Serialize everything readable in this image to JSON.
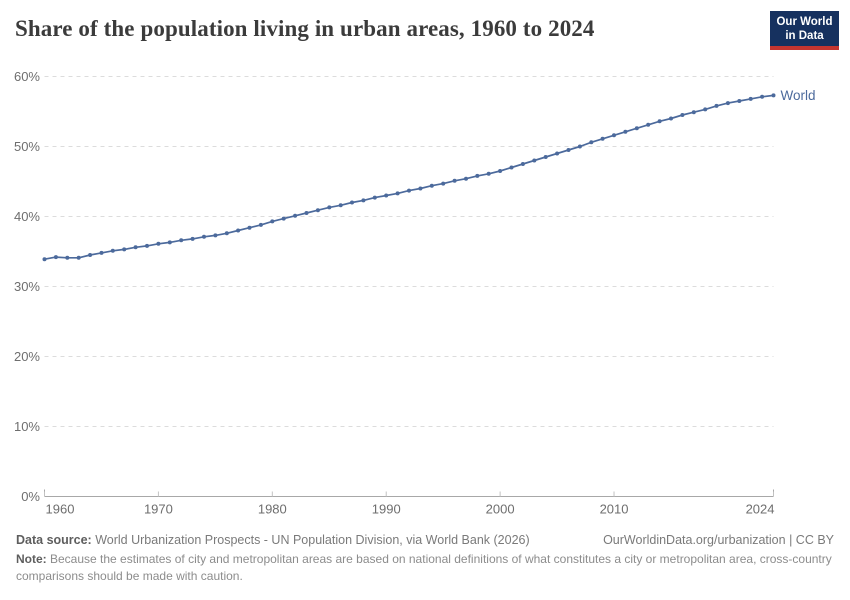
{
  "header": {
    "logo": {
      "line1": "Our World",
      "line2": "in Data"
    }
  },
  "chart_data": {
    "type": "line",
    "title": "Share of the population living in urban areas, 1960 to 2024",
    "xlabel": "",
    "ylabel": "",
    "unit": "%",
    "xlim": [
      1960,
      2024
    ],
    "ylim": [
      0,
      60
    ],
    "xticks": [
      1960,
      1970,
      1980,
      1990,
      2000,
      2010,
      2024
    ],
    "ytick_values": [
      0,
      10,
      20,
      30,
      40,
      50,
      60
    ],
    "ytick_labels": [
      "0%",
      "10%",
      "20%",
      "30%",
      "40%",
      "50%",
      "60%"
    ],
    "grid": "horizontal-dashed",
    "legend_position": "end-of-line",
    "series": [
      {
        "name": "World",
        "color": "#4C6A9C",
        "x": [
          1960,
          1961,
          1962,
          1963,
          1964,
          1965,
          1966,
          1967,
          1968,
          1969,
          1970,
          1971,
          1972,
          1973,
          1974,
          1975,
          1976,
          1977,
          1978,
          1979,
          1980,
          1981,
          1982,
          1983,
          1984,
          1985,
          1986,
          1987,
          1988,
          1989,
          1990,
          1991,
          1992,
          1993,
          1994,
          1995,
          1996,
          1997,
          1998,
          1999,
          2000,
          2001,
          2002,
          2003,
          2004,
          2005,
          2006,
          2007,
          2008,
          2009,
          2010,
          2011,
          2012,
          2013,
          2014,
          2015,
          2016,
          2017,
          2018,
          2019,
          2020,
          2021,
          2022,
          2023,
          2024
        ],
        "values": [
          33.9,
          34.2,
          34.1,
          34.1,
          34.5,
          34.8,
          35.1,
          35.3,
          35.6,
          35.8,
          36.1,
          36.3,
          36.6,
          36.8,
          37.1,
          37.3,
          37.6,
          38.0,
          38.4,
          38.8,
          39.3,
          39.7,
          40.1,
          40.5,
          40.9,
          41.3,
          41.6,
          42.0,
          42.3,
          42.7,
          43.0,
          43.3,
          43.7,
          44.0,
          44.4,
          44.7,
          45.1,
          45.4,
          45.8,
          46.1,
          46.5,
          47.0,
          47.5,
          48.0,
          48.5,
          49.0,
          49.5,
          50.0,
          50.6,
          51.1,
          51.6,
          52.1,
          52.6,
          53.1,
          53.6,
          54.0,
          54.5,
          54.9,
          55.3,
          55.8,
          56.2,
          56.5,
          56.8,
          57.1,
          57.3
        ]
      }
    ]
  },
  "footer": {
    "source_label": "Data source:",
    "source_text": " World Urbanization Prospects - UN Population Division, via World Bank (2026)",
    "link": "OurWorldinData.org/urbanization",
    "separator": " | ",
    "license": "CC BY",
    "note_label": "Note:",
    "note_text": " Because the estimates of city and metropolitan areas are based on national definitions of what constitutes a city or metropolitan area, cross-country comparisons should be made with caution."
  },
  "colors": {
    "line": "#4C6A9C",
    "grid": "#dcdcdc",
    "axis": "#a8a8a8",
    "tick": "#c2c2c2",
    "tick_text": "#6e6e6e",
    "title_text": "#3b3b3b",
    "logo_bg": "#16315F",
    "logo_bar": "#C5352F"
  }
}
